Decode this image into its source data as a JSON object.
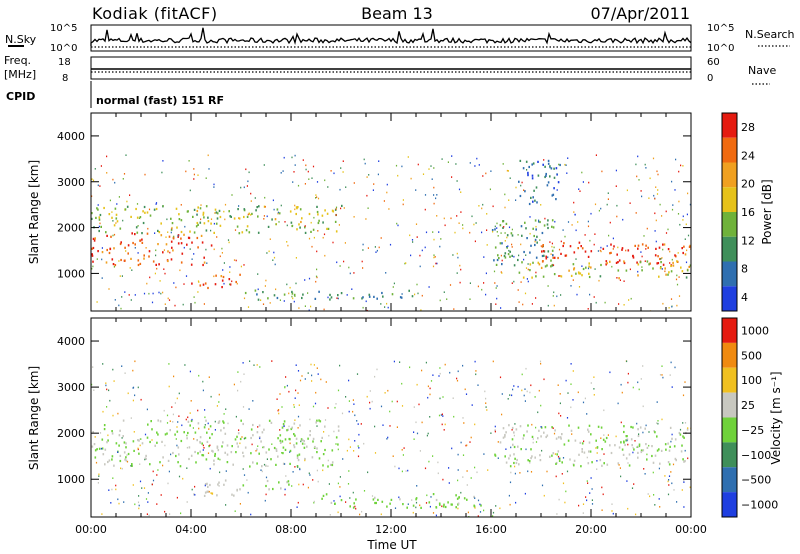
{
  "header": {
    "station": "Kodiak (fitACF)",
    "beam": "Beam 13",
    "date": "07/Apr/2011"
  },
  "status_panels": {
    "nsky": {
      "label": "N.Sky",
      "right_label": "N.Search",
      "ticks": [
        "10^5",
        "10^0"
      ]
    },
    "freq": {
      "label_line1": "Freq.",
      "label_line2": "[MHz]",
      "left_ticks": [
        "18",
        "8"
      ],
      "right_label": "Nave",
      "right_ticks": [
        "60",
        "0"
      ]
    },
    "cpid": {
      "label": "CPID",
      "value": "normal (fast) 151 RF"
    }
  },
  "colors": {
    "power_scale": [
      "#1f3fe0",
      "#2f6fb0",
      "#3f8f5a",
      "#6fb23a",
      "#e6c21a",
      "#f0a020",
      "#f06a10",
      "#e51b10"
    ],
    "velocity_scale": [
      "#1f3fe0",
      "#2f6fb0",
      "#3f8f5a",
      "#6fd23a",
      "#c8c8c0",
      "#f0c020",
      "#f08a10",
      "#e51b10"
    ]
  },
  "chart_data": [
    {
      "type": "heatmap",
      "name": "power",
      "ylabel": "Slant Range [km]",
      "xlabel": "",
      "x_ticks": [
        "00:00",
        "04:00",
        "08:00",
        "12:00",
        "16:00",
        "20:00",
        "00:00"
      ],
      "y_ticks": [
        "1000",
        "2000",
        "3000",
        "4000"
      ],
      "xlim_hours": [
        0,
        24
      ],
      "ylim_km": [
        180,
        4500
      ],
      "colorbar": {
        "label": "Power [dB]",
        "ticks": [
          "28",
          "24",
          "20",
          "16",
          "12",
          "8",
          "4"
        ],
        "range": [
          0,
          30
        ]
      },
      "bands": [
        {
          "t0": 0,
          "t1": 4.8,
          "r0": 1200,
          "r1": 1900,
          "level": 26
        },
        {
          "t0": 0,
          "t1": 10,
          "r0": 1900,
          "r1": 2500,
          "level": 14
        },
        {
          "t0": 4,
          "t1": 6,
          "r0": 700,
          "r1": 1000,
          "level": 27
        },
        {
          "t0": 16,
          "t1": 18.5,
          "r0": 1200,
          "r1": 2200,
          "level": 10
        },
        {
          "t0": 17,
          "t1": 18.8,
          "r0": 2500,
          "r1": 3500,
          "level": 6
        },
        {
          "t0": 18,
          "t1": 24,
          "r0": 1200,
          "r1": 1700,
          "level": 27
        },
        {
          "t0": 17,
          "t1": 24,
          "r0": 900,
          "r1": 1300,
          "level": 16
        },
        {
          "t0": 6,
          "t1": 13,
          "r0": 450,
          "r1": 650,
          "level": 10
        }
      ]
    },
    {
      "type": "heatmap",
      "name": "velocity",
      "ylabel": "Slant Range [km]",
      "xlabel": "Time UT",
      "x_ticks": [
        "00:00",
        "04:00",
        "08:00",
        "12:00",
        "16:00",
        "20:00",
        "00:00"
      ],
      "y_ticks": [
        "1000",
        "2000",
        "3000",
        "4000"
      ],
      "xlim_hours": [
        0,
        24
      ],
      "ylim_km": [
        180,
        4500
      ],
      "colorbar": {
        "label": "Velocity [m s⁻¹]",
        "ticks": [
          "1000",
          "500",
          "100",
          "25",
          "−25",
          "−100",
          "−500",
          "−1000"
        ],
        "range": [
          -1200,
          1200
        ]
      },
      "bands": [
        {
          "t0": 0,
          "t1": 10,
          "r0": 1300,
          "r1": 2300,
          "level": 0
        },
        {
          "t0": 4,
          "t1": 6,
          "r0": 600,
          "r1": 1000,
          "level": 200
        },
        {
          "t0": 6,
          "t1": 8,
          "r0": 800,
          "r1": 1000,
          "level": -60
        },
        {
          "t0": 16,
          "t1": 24,
          "r0": 1300,
          "r1": 2200,
          "level": 0
        },
        {
          "t0": 9,
          "t1": 16,
          "r0": 400,
          "r1": 700,
          "level": -120
        }
      ]
    }
  ]
}
